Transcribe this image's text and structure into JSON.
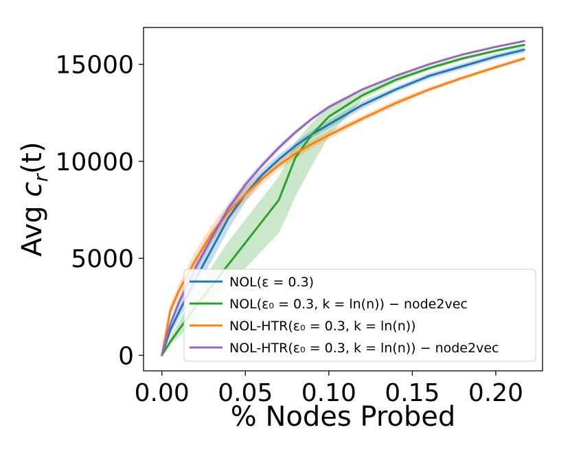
{
  "chart_data": {
    "type": "line",
    "title": "",
    "xlabel": "% Nodes Probed",
    "ylabel": "Avg c_r(t)",
    "xlim": [
      -0.011,
      0.228
    ],
    "ylim": [
      -800,
      16900
    ],
    "xticks": [
      "0.00",
      "0.05",
      "0.10",
      "0.15",
      "0.20"
    ],
    "xtick_values": [
      0.0,
      0.05,
      0.1,
      0.15,
      0.2
    ],
    "yticks": [
      "0",
      "5000",
      "10000",
      "15000"
    ],
    "ytick_values": [
      0,
      5000,
      10000,
      15000
    ],
    "grid": false,
    "legend_position": "lower-right",
    "series": [
      {
        "name": "NOL(ε = 0.3)",
        "color": "#1f77b4",
        "x": [
          0,
          0.005,
          0.01,
          0.02,
          0.03,
          0.04,
          0.05,
          0.06,
          0.07,
          0.08,
          0.09,
          0.1,
          0.12,
          0.14,
          0.16,
          0.18,
          0.2,
          0.217
        ],
        "y": [
          0,
          1300,
          2200,
          3900,
          5500,
          7100,
          8300,
          9300,
          10100,
          10800,
          11400,
          11900,
          12900,
          13700,
          14400,
          14900,
          15400,
          15750
        ],
        "lower": [
          0,
          1050,
          1850,
          3400,
          4900,
          6500,
          7900,
          9000,
          9850,
          10600,
          11200,
          11700,
          12700,
          13550,
          14250,
          14750,
          15250,
          15600
        ],
        "upper": [
          0,
          1550,
          2550,
          4400,
          6100,
          7700,
          8700,
          9600,
          10350,
          11000,
          11600,
          12100,
          13100,
          13850,
          14550,
          15050,
          15550,
          15900
        ]
      },
      {
        "name": "NOL(ε₀ = 0.3, k = ln(n)) − node2vec",
        "color": "#2ca02c",
        "x": [
          0,
          0.005,
          0.01,
          0.02,
          0.03,
          0.04,
          0.05,
          0.06,
          0.07,
          0.075,
          0.08,
          0.09,
          0.1,
          0.12,
          0.14,
          0.16,
          0.18,
          0.2,
          0.217
        ],
        "y": [
          0,
          700,
          1300,
          2500,
          3600,
          4700,
          5800,
          6900,
          8000,
          9100,
          10200,
          11400,
          12300,
          13400,
          14200,
          14800,
          15300,
          15700,
          16000
        ],
        "lower": [
          0,
          500,
          950,
          1800,
          2700,
          3600,
          4500,
          5400,
          6300,
          7200,
          8200,
          9800,
          11300,
          13200,
          14050,
          14700,
          15200,
          15620,
          15930
        ],
        "upper": [
          0,
          950,
          1700,
          3300,
          4600,
          5900,
          7000,
          8100,
          9200,
          10100,
          11000,
          12000,
          12800,
          13600,
          14350,
          14900,
          15400,
          15780,
          16070
        ]
      },
      {
        "name": "NOL-HTR(ε₀ = 0.3, k = ln(n))",
        "color": "#ff7f0e",
        "x": [
          0,
          0.005,
          0.01,
          0.02,
          0.03,
          0.04,
          0.05,
          0.06,
          0.07,
          0.08,
          0.09,
          0.1,
          0.12,
          0.14,
          0.16,
          0.18,
          0.2,
          0.217
        ],
        "y": [
          0,
          2300,
          3300,
          4900,
          6300,
          7400,
          8300,
          9100,
          9800,
          10400,
          10900,
          11350,
          12200,
          13000,
          13700,
          14300,
          14850,
          15300
        ],
        "lower": [
          0,
          2000,
          2950,
          4450,
          5850,
          7000,
          7950,
          8800,
          9550,
          10150,
          10700,
          11150,
          12050,
          12850,
          13580,
          14200,
          14750,
          15200
        ],
        "upper": [
          0,
          2600,
          3650,
          5350,
          6750,
          7800,
          8650,
          9400,
          10050,
          10650,
          11100,
          11550,
          12350,
          13150,
          13820,
          14400,
          14950,
          15400
        ]
      },
      {
        "name": "NOL-HTR(ε₀ = 0.3, k = ln(n)) − node2vec",
        "color": "#9467bd",
        "x": [
          0,
          0.005,
          0.01,
          0.02,
          0.03,
          0.04,
          0.05,
          0.06,
          0.07,
          0.08,
          0.09,
          0.1,
          0.12,
          0.14,
          0.16,
          0.18,
          0.2,
          0.217
        ],
        "y": [
          0,
          1600,
          2700,
          4500,
          6100,
          7600,
          8800,
          9800,
          10700,
          11500,
          12200,
          12800,
          13700,
          14400,
          15000,
          15500,
          15900,
          16200
        ],
        "lower": [
          0,
          1450,
          2500,
          4250,
          5850,
          7350,
          8600,
          9650,
          10550,
          11380,
          12100,
          12700,
          13630,
          14350,
          14960,
          15460,
          15870,
          16160
        ],
        "upper": [
          0,
          1750,
          2900,
          4750,
          6350,
          7850,
          9000,
          9950,
          10850,
          11620,
          12300,
          12900,
          13770,
          14450,
          15040,
          15540,
          15930,
          16240
        ]
      }
    ]
  }
}
